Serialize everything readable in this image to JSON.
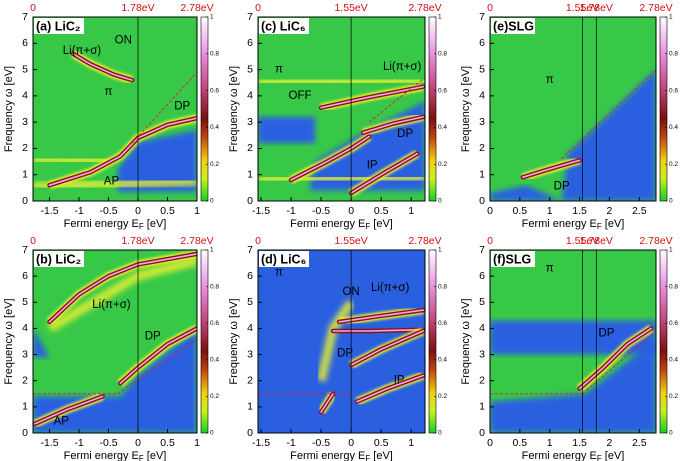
{
  "chart_data": [
    {
      "type": "heatmap",
      "title": "(a) LiC₂",
      "xlabel": [
        "Fermi energy E",
        "F",
        " [eV]"
      ],
      "ylabel": "Frequency ω [eV]",
      "xlim": [
        -1.78,
        1.0
      ],
      "xticks": [
        -1.5,
        -1,
        -0.5,
        0,
        0.5,
        1
      ],
      "ylim": [
        0,
        7
      ],
      "yticks": [
        0,
        1,
        2,
        3,
        4,
        5,
        6,
        7
      ],
      "top_ticks": [
        {
          "value": -1.78,
          "label": "0"
        },
        {
          "value": 0,
          "label": "1.78eV"
        },
        {
          "value": 1.0,
          "label": "2.78eV"
        }
      ],
      "colorbar_ticks": [
        0,
        0.2,
        0.4,
        0.6,
        0.8,
        1
      ],
      "annotations": [
        {
          "text": "Li(π+σ)",
          "color": "#000000"
        },
        {
          "text": "ON",
          "color": "#e02010"
        },
        {
          "text": "π",
          "color": "#000000"
        },
        {
          "text": "DP",
          "color": "#000000"
        },
        {
          "text": "AP",
          "color": "#ffffff"
        }
      ]
    },
    {
      "type": "heatmap",
      "title": "(b) LiC₂",
      "xlabel": [
        "Fermi energy E",
        "F",
        " [eV]"
      ],
      "ylabel": "Frequency ω [eV]",
      "xlim": [
        -1.78,
        1.0
      ],
      "xticks": [
        -1.5,
        -1,
        -0.5,
        0,
        0.5,
        1
      ],
      "ylim": [
        0,
        7
      ],
      "yticks": [
        0,
        1,
        2,
        3,
        4,
        5,
        6,
        7
      ],
      "top_ticks": [
        {
          "value": -1.78,
          "label": "0"
        },
        {
          "value": 0,
          "label": "1.78eV"
        },
        {
          "value": 1.0,
          "label": "2.78eV"
        }
      ],
      "colorbar_ticks": [
        0,
        0.2,
        0.4,
        0.6,
        0.8,
        1
      ],
      "annotations": [
        {
          "text": "Li(π+σ)",
          "color": "#000000"
        },
        {
          "text": "DP",
          "color": "#000000"
        },
        {
          "text": "AP",
          "color": "#000000"
        }
      ]
    },
    {
      "type": "heatmap",
      "title": "(c) LiC₆",
      "xlabel": [
        "Fermi energy E",
        "F",
        " [eV]"
      ],
      "ylabel": "Frequency ω [eV]",
      "xlim": [
        -1.55,
        1.23
      ],
      "xticks": [
        -1.5,
        -1,
        -0.5,
        0,
        0.5,
        1
      ],
      "ylim": [
        0,
        7
      ],
      "yticks": [
        0,
        1,
        2,
        3,
        4,
        5,
        6,
        7
      ],
      "top_ticks": [
        {
          "value": -1.55,
          "label": "0"
        },
        {
          "value": 0,
          "label": "1.55eV"
        },
        {
          "value": 1.23,
          "label": "2.78eV"
        }
      ],
      "colorbar_ticks": [
        0,
        0.2,
        0.4,
        0.6,
        0.8,
        1
      ],
      "annotations": [
        {
          "text": "π",
          "color": "#000000"
        },
        {
          "text": "Li(π+σ)",
          "color": "#000000"
        },
        {
          "text": "OFF",
          "color": "#1030d0"
        },
        {
          "text": "DP",
          "color": "#000000"
        },
        {
          "text": "IP",
          "color": "#000000"
        }
      ]
    },
    {
      "type": "heatmap",
      "title": "(d) LiC₆",
      "xlabel": [
        "Fermi energy E",
        "F",
        " [eV]"
      ],
      "ylabel": "Frequency ω [eV]",
      "xlim": [
        -1.55,
        1.23
      ],
      "xticks": [
        -1.5,
        -1,
        -0.5,
        0,
        0.5,
        1
      ],
      "ylim": [
        0,
        7
      ],
      "yticks": [
        0,
        1,
        2,
        3,
        4,
        5,
        6,
        7
      ],
      "top_ticks": [
        {
          "value": -1.55,
          "label": "0"
        },
        {
          "value": 0,
          "label": "1.55eV"
        },
        {
          "value": 1.23,
          "label": "2.78eV"
        }
      ],
      "colorbar_ticks": [
        0,
        0.2,
        0.4,
        0.6,
        0.8,
        1
      ],
      "annotations": [
        {
          "text": "π",
          "color": "#000000"
        },
        {
          "text": "ON",
          "color": "#e02010"
        },
        {
          "text": "Li(π+σ)",
          "color": "#000000"
        },
        {
          "text": "DP",
          "color": "#000000"
        },
        {
          "text": "IP",
          "color": "#000000"
        }
      ]
    },
    {
      "type": "heatmap",
      "title": "(e)SLG",
      "xlabel": [
        "Fermi energy E",
        "F",
        " [eV]"
      ],
      "ylabel": "Frequency ω [eV]",
      "xlim": [
        0,
        2.78
      ],
      "xticks": [
        0,
        0.5,
        1,
        1.5,
        2,
        2.5
      ],
      "ylim": [
        0,
        7
      ],
      "yticks": [
        0,
        1,
        2,
        3,
        4,
        5,
        6,
        7
      ],
      "top_ticks": [
        {
          "value": 0,
          "label": "0"
        },
        {
          "value": 1.55,
          "label": "1.55eV"
        },
        {
          "value": 1.78,
          "label": "1.78eV"
        },
        {
          "value": 2.78,
          "label": "2.78eV"
        }
      ],
      "colorbar_ticks": [
        0,
        0.2,
        0.4,
        0.6,
        0.8,
        1
      ],
      "annotations": [
        {
          "text": "π",
          "color": "#000000"
        },
        {
          "text": "DP",
          "color": "#ffffff"
        }
      ]
    },
    {
      "type": "heatmap",
      "title": "(f)SLG",
      "xlabel": [
        "Fermi energy E",
        "F",
        " [eV]"
      ],
      "ylabel": "Frequency ω [eV]",
      "xlim": [
        0,
        2.78
      ],
      "xticks": [
        0,
        0.5,
        1,
        1.5,
        2,
        2.5
      ],
      "ylim": [
        0,
        7
      ],
      "yticks": [
        0,
        1,
        2,
        3,
        4,
        5,
        6,
        7
      ],
      "top_ticks": [
        {
          "value": 0,
          "label": "0"
        },
        {
          "value": 1.55,
          "label": "1.55eV"
        },
        {
          "value": 1.78,
          "label": "1.78eV"
        },
        {
          "value": 2.78,
          "label": "2.78eV"
        }
      ],
      "colorbar_ticks": [
        0,
        0.2,
        0.4,
        0.6,
        0.8,
        1
      ],
      "annotations": [
        {
          "text": "π",
          "color": "#000000"
        },
        {
          "text": "DP",
          "color": "#000000"
        }
      ]
    }
  ]
}
